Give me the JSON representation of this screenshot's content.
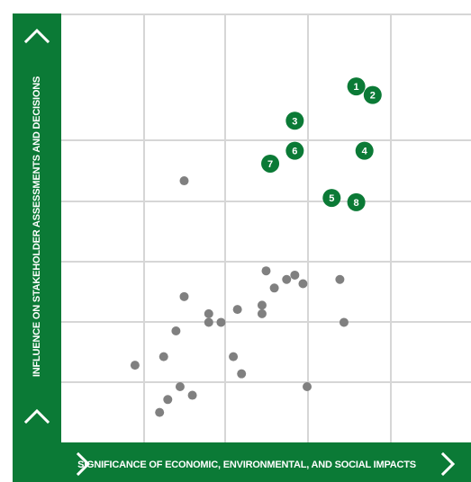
{
  "chart_data": {
    "type": "scatter",
    "xlabel": "SIGNIFICANCE OF ECONOMIC, ENVIRONMENTAL, AND SOCIAL IMPACTS",
    "ylabel": "INFLUENCE ON STAKEHOLDER ASSESSMENTS AND DECISIONS",
    "xlim": [
      0,
      10
    ],
    "ylim": [
      0,
      10
    ],
    "grid": true,
    "colors": {
      "accent": "#0b7a36",
      "point": "#808080",
      "grid": "#d6d6d6"
    },
    "icons": {
      "y_axis": "chevron-up-icon",
      "x_axis": "chevron-right-icon"
    },
    "points": [
      {
        "x": 1.8,
        "y": 1.8
      },
      {
        "x": 2.4,
        "y": 0.7
      },
      {
        "x": 2.6,
        "y": 1.0
      },
      {
        "x": 2.9,
        "y": 1.3
      },
      {
        "x": 3.2,
        "y": 1.1
      },
      {
        "x": 2.5,
        "y": 2.0
      },
      {
        "x": 2.8,
        "y": 2.6
      },
      {
        "x": 3.0,
        "y": 3.4
      },
      {
        "x": 3.0,
        "y": 6.1
      },
      {
        "x": 3.6,
        "y": 3.0
      },
      {
        "x": 3.6,
        "y": 2.8
      },
      {
        "x": 3.9,
        "y": 2.8
      },
      {
        "x": 4.2,
        "y": 2.0
      },
      {
        "x": 4.3,
        "y": 3.1
      },
      {
        "x": 4.4,
        "y": 1.6
      },
      {
        "x": 4.9,
        "y": 3.0
      },
      {
        "x": 4.9,
        "y": 3.2
      },
      {
        "x": 5.0,
        "y": 4.0
      },
      {
        "x": 5.2,
        "y": 3.6
      },
      {
        "x": 5.5,
        "y": 3.8
      },
      {
        "x": 5.7,
        "y": 3.9
      },
      {
        "x": 5.9,
        "y": 3.7
      },
      {
        "x": 6.0,
        "y": 1.3
      },
      {
        "x": 6.8,
        "y": 3.8
      },
      {
        "x": 6.9,
        "y": 2.8
      }
    ],
    "highlights": [
      {
        "label": "1",
        "x": 7.2,
        "y": 8.3
      },
      {
        "label": "2",
        "x": 7.6,
        "y": 8.1
      },
      {
        "label": "3",
        "x": 5.7,
        "y": 7.5
      },
      {
        "label": "4",
        "x": 7.4,
        "y": 6.8
      },
      {
        "label": "5",
        "x": 6.6,
        "y": 5.7
      },
      {
        "label": "6",
        "x": 5.7,
        "y": 6.8
      },
      {
        "label": "7",
        "x": 5.1,
        "y": 6.5
      },
      {
        "label": "8",
        "x": 7.2,
        "y": 5.6
      }
    ]
  }
}
